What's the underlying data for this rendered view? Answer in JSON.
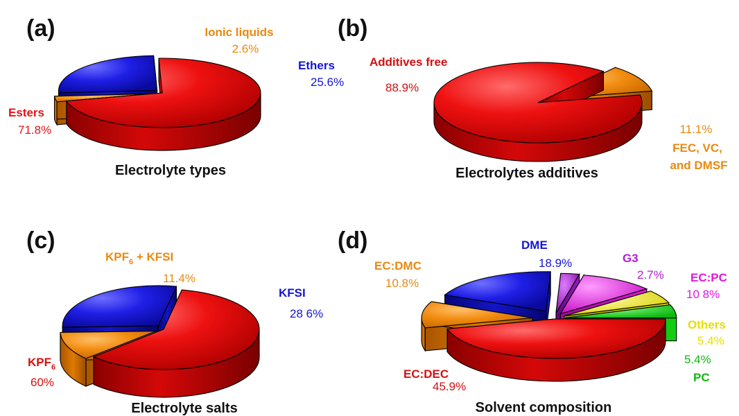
{
  "chart_data": [
    {
      "type": "pie",
      "panel_label": "(a)",
      "title": "Electrolyte types",
      "series": [
        {
          "name": "Esters",
          "value": 71.8,
          "value_label": "71.8%",
          "color": "#ee1111"
        },
        {
          "name": "Ionic liquids",
          "value": 2.6,
          "value_label": "2.6%",
          "color": "#f28c10"
        },
        {
          "name": "Ethers",
          "value": 25.6,
          "value_label": "25.6%",
          "color": "#1f1fe6"
        }
      ]
    },
    {
      "type": "pie",
      "panel_label": "(b)",
      "title": "Electrolytes additives",
      "series": [
        {
          "name": "Additives free",
          "value": 88.9,
          "value_label": "88.9%",
          "color": "#ee1111"
        },
        {
          "name": "FEC, VC, and DMSF",
          "name_lines": [
            "FEC, VC,",
            "and DMSF"
          ],
          "value": 11.1,
          "value_label": "11.1%",
          "color": "#f28c10"
        }
      ]
    },
    {
      "type": "pie",
      "panel_label": "(c)",
      "title": "Electrolyte salts",
      "series": [
        {
          "name": "KPF6",
          "name_base": "KPF",
          "name_sub": "6",
          "value": 60,
          "value_label": "60%",
          "color": "#ee1111"
        },
        {
          "name": "KPF6 + KFSI",
          "name_base": "KPF",
          "name_sub": "6",
          "name_tail": " + KFSI",
          "value": 11.4,
          "value_label": "11.4%",
          "color": "#f28c10"
        },
        {
          "name": "KFSI",
          "value": 28.6,
          "value_label": "28 6%",
          "color": "#1f1fe6"
        }
      ]
    },
    {
      "type": "pie",
      "panel_label": "(d)",
      "title": "Solvent composition",
      "series": [
        {
          "name": "EC:DEC",
          "value": 45.9,
          "value_label": "45.9%",
          "color": "#ee1111"
        },
        {
          "name": "EC:DMC",
          "value": 10.8,
          "value_label": "10.8%",
          "color": "#f28c10"
        },
        {
          "name": "DME",
          "value": 18.9,
          "value_label": "18.9%",
          "color": "#1f1fe6"
        },
        {
          "name": "G3",
          "value": 2.7,
          "value_label": "2.7%",
          "color": "#b01cd6"
        },
        {
          "name": "EC:PC",
          "value": 10.8,
          "value_label": "10 8%",
          "color": "#f21ef0"
        },
        {
          "name": "Others",
          "value": 5.4,
          "value_label": "5.4%",
          "color": "#f6f21a"
        },
        {
          "name": "PC",
          "value": 5.4,
          "value_label": "5.4%",
          "color": "#18e018"
        }
      ]
    }
  ]
}
